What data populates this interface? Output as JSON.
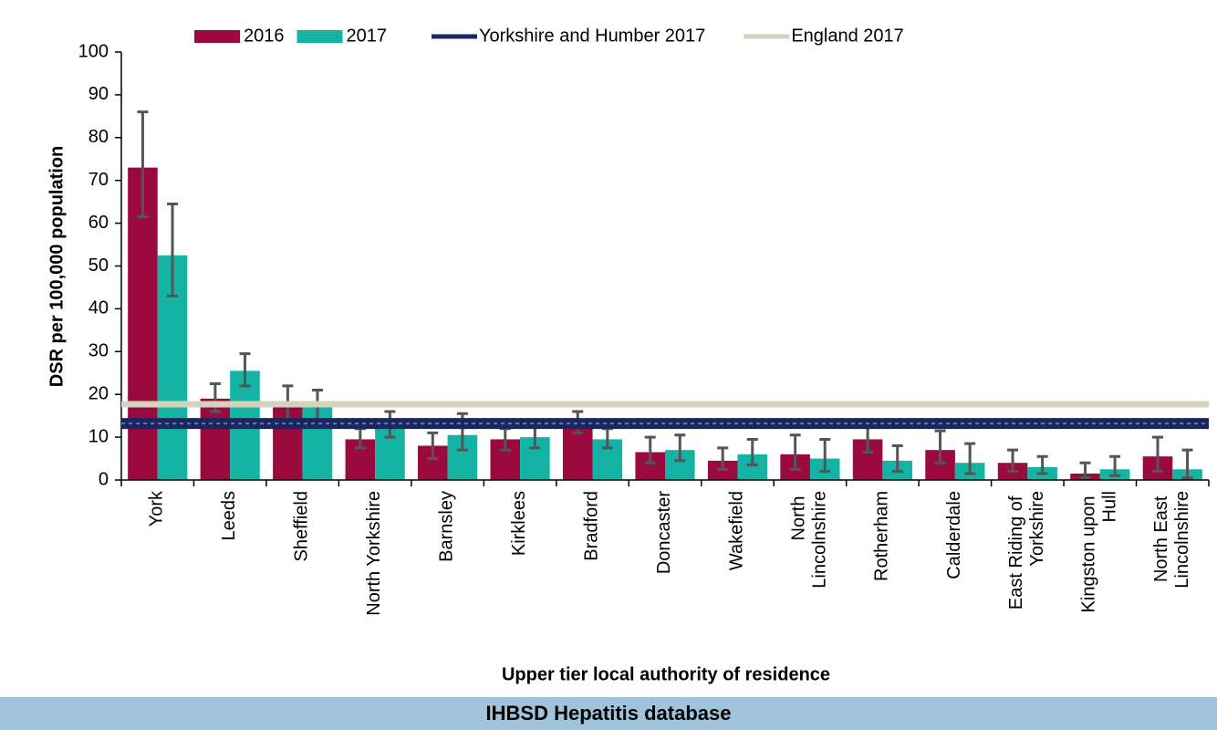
{
  "chart_data": {
    "type": "bar",
    "x_label": "Upper tier local authority of residence",
    "y_label": "DSR per 100,000 population",
    "source": "IHBSD Hepatitis database",
    "categories": [
      "York",
      "Leeds",
      "Sheffield",
      "North Yorkshire",
      "Barnsley",
      "Kirklees",
      "Bradford",
      "Doncaster",
      "Wakefield",
      "North Lincolnshire",
      "Rotherham",
      "Calderdale",
      "East Riding of Yorkshire",
      "Kingston upon Hull",
      "North East Lincolnshire"
    ],
    "series": [
      {
        "name": "2016",
        "color": "#9b0a3e",
        "values": [
          73,
          19,
          17.5,
          9.5,
          8,
          9.5,
          13,
          6.5,
          4.5,
          6,
          9.5,
          7,
          4,
          1.5,
          5.5
        ],
        "ci_low": [
          61.5,
          16,
          14,
          7.5,
          5,
          7,
          11,
          4,
          2.5,
          2.5,
          6.5,
          4,
          2,
          0.5,
          2
        ],
        "ci_high": [
          86,
          22.5,
          22,
          12,
          11,
          12,
          16,
          10,
          7.5,
          10.5,
          14,
          11.5,
          7,
          4,
          10
        ]
      },
      {
        "name": "2017",
        "color": "#14b3a4",
        "values": [
          52.5,
          25.5,
          17,
          13,
          10.5,
          10,
          9.5,
          7,
          6,
          5,
          4.5,
          4,
          3,
          2.5,
          2.5
        ],
        "ci_low": [
          43,
          22,
          13.5,
          10,
          7,
          7.5,
          7.5,
          4.5,
          3.5,
          2,
          2,
          1.5,
          1.5,
          1,
          0.5
        ],
        "ci_high": [
          64.5,
          29.5,
          21,
          16,
          15.5,
          12.5,
          12,
          10.5,
          9.5,
          9.5,
          8,
          8.5,
          5.5,
          5.5,
          7
        ]
      }
    ],
    "reference_lines": [
      {
        "name": "Yorkshire and Humber 2017",
        "color": "#1a2660",
        "value": 13.2
      },
      {
        "name": "England 2017",
        "color": "#d6d3bd",
        "value": 17.7
      }
    ],
    "ylim": [
      0,
      100
    ],
    "yticks": [
      0,
      10,
      20,
      30,
      40,
      50,
      60,
      70,
      80,
      90,
      100
    ],
    "grid": false
  }
}
